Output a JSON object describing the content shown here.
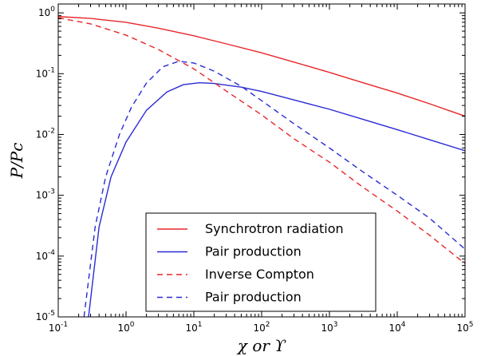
{
  "chart_data": {
    "type": "line",
    "xscale": "log",
    "yscale": "log",
    "xlim": [
      0.1,
      100000
    ],
    "ylim": [
      1e-05,
      1.4
    ],
    "xlabel": "χ or ϒ",
    "ylabel": "P/Pc",
    "grid": false,
    "legend_position": "lower-center",
    "x_ticks": [
      {
        "value": 0.1,
        "base": "10",
        "exp": "-1"
      },
      {
        "value": 1,
        "base": "10",
        "exp": "0"
      },
      {
        "value": 10,
        "base": "10",
        "exp": "1"
      },
      {
        "value": 100,
        "base": "10",
        "exp": "2"
      },
      {
        "value": 1000,
        "base": "10",
        "exp": "3"
      },
      {
        "value": 10000,
        "base": "10",
        "exp": "4"
      },
      {
        "value": 100000,
        "base": "10",
        "exp": "5"
      }
    ],
    "y_ticks": [
      {
        "value": 1e-05,
        "base": "10",
        "exp": "-5"
      },
      {
        "value": 0.0001,
        "base": "10",
        "exp": "-4"
      },
      {
        "value": 0.001,
        "base": "10",
        "exp": "-3"
      },
      {
        "value": 0.01,
        "base": "10",
        "exp": "-2"
      },
      {
        "value": 0.1,
        "base": "10",
        "exp": "-1"
      },
      {
        "value": 1,
        "base": "10",
        "exp": "0"
      }
    ],
    "series": [
      {
        "name": "Synchrotron radiation",
        "color": "#e8262a",
        "dash": "solid",
        "x": [
          0.1,
          0.3,
          1,
          3,
          10,
          30,
          100,
          300,
          1000,
          3000,
          10000,
          30000,
          100000
        ],
        "y": [
          0.87,
          0.81,
          0.7,
          0.56,
          0.42,
          0.31,
          0.22,
          0.155,
          0.105,
          0.072,
          0.048,
          0.032,
          0.02
        ]
      },
      {
        "name": "Pair production",
        "color": "#2a2ad6",
        "dash": "solid",
        "x": [
          0.28,
          0.4,
          0.6,
          1,
          2,
          4,
          7,
          12,
          20,
          50,
          100,
          300,
          1000,
          3000,
          10000,
          30000,
          100000
        ],
        "y": [
          1e-05,
          0.0003,
          0.002,
          0.0075,
          0.025,
          0.05,
          0.066,
          0.071,
          0.069,
          0.06,
          0.051,
          0.037,
          0.026,
          0.018,
          0.012,
          0.0082,
          0.0054
        ]
      },
      {
        "name": "Inverse Compton",
        "color": "#e8262a",
        "dash": "dashed",
        "x": [
          0.1,
          0.3,
          1,
          3,
          10,
          30,
          100,
          300,
          1000,
          3000,
          10000,
          30000,
          100000
        ],
        "y": [
          0.83,
          0.66,
          0.43,
          0.25,
          0.12,
          0.052,
          0.021,
          0.0085,
          0.0035,
          0.0014,
          0.00055,
          0.00022,
          7.5e-05
        ]
      },
      {
        "name": "Pair production",
        "color": "#2a2ad6",
        "dash": "dashed",
        "x": [
          0.24,
          0.35,
          0.5,
          0.8,
          1.2,
          2,
          3.5,
          6,
          10,
          20,
          50,
          100,
          300,
          1000,
          3000,
          10000,
          30000,
          100000
        ],
        "y": [
          1e-05,
          0.0003,
          0.002,
          0.01,
          0.028,
          0.07,
          0.13,
          0.16,
          0.15,
          0.11,
          0.062,
          0.036,
          0.015,
          0.006,
          0.0025,
          0.001,
          0.00042,
          0.00013
        ]
      }
    ]
  }
}
